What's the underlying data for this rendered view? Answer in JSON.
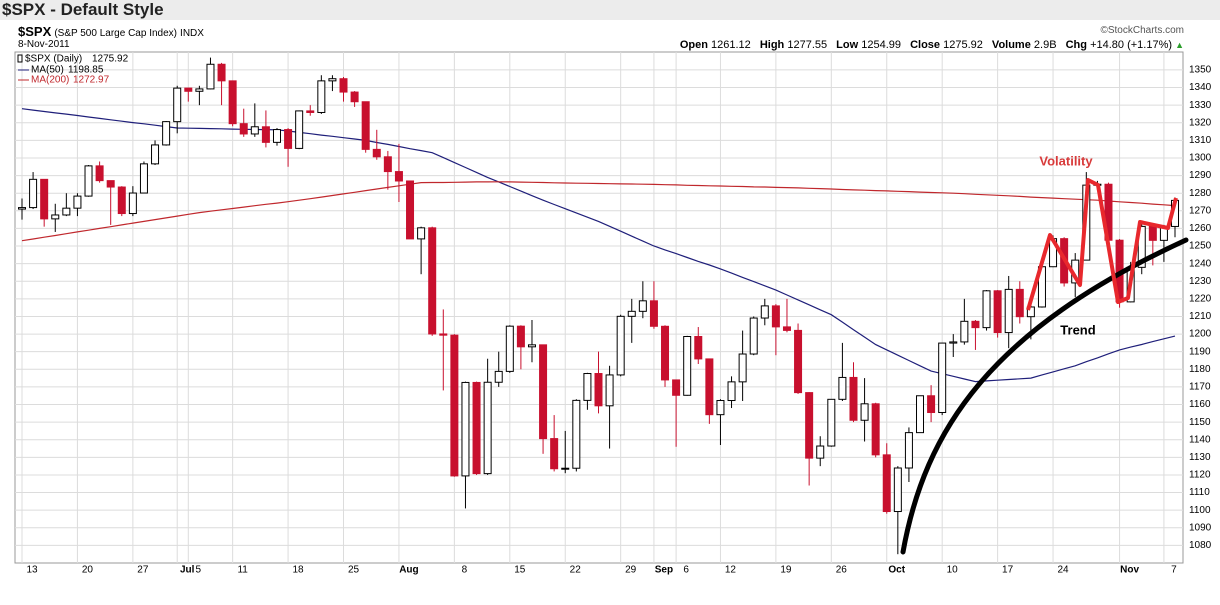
{
  "header": {
    "title": "$SPX - Default Style",
    "symbol": "$SPX",
    "name": "(S&P 500 Large Cap Index)",
    "exchange": "INDX",
    "date": "8-Nov-2011",
    "credit": "©StockCharts.com",
    "quote": {
      "labels": [
        "Open",
        "High",
        "Low",
        "Close",
        "Volume",
        "Chg"
      ],
      "volume": "2.9B",
      "change": "+14.80 (+1.17%)"
    }
  },
  "chart_data": {
    "type": "candlestick",
    "series_name": "$SPX (Daily)",
    "up_color": "#000000",
    "down_color": "#c8102e",
    "grid": true,
    "categories": [
      "13",
      null,
      null,
      null,
      null,
      "20",
      null,
      null,
      null,
      null,
      "27",
      null,
      null,
      null,
      "Jul",
      "5",
      null,
      null,
      null,
      "11",
      null,
      null,
      null,
      null,
      "18",
      null,
      null,
      null,
      null,
      "25",
      null,
      null,
      null,
      null,
      "Aug",
      null,
      null,
      null,
      null,
      "8",
      null,
      null,
      null,
      null,
      "15",
      null,
      null,
      null,
      null,
      "22",
      null,
      null,
      null,
      null,
      "29",
      null,
      null,
      "Sep",
      null,
      "6",
      null,
      null,
      null,
      "12",
      null,
      null,
      null,
      null,
      "19",
      null,
      null,
      null,
      null,
      "26",
      null,
      null,
      null,
      null,
      "Oct",
      null,
      null,
      null,
      null,
      "10",
      null,
      null,
      null,
      null,
      "17",
      null,
      null,
      null,
      null,
      "24",
      null,
      null,
      null,
      null,
      null,
      "Nov",
      null,
      null,
      null,
      "7",
      null
    ],
    "open": [
      1270.98,
      1271.83,
      1287.87,
      1265.42,
      1267.64,
      1271.5,
      1278.36,
      1295.52,
      1287.14,
      1283.5,
      1268.45,
      1280.1,
      1296.67,
      1307.41,
      1320.64,
      1339.67,
      1337.88,
      1339.22,
      1353.22,
      1343.8,
      1319.49,
      1313.64,
      1317.72,
      1308.87,
      1316.14,
      1305.44,
      1326.73,
      1325.84,
      1343.8,
      1345.02,
      1337.43,
      1331.94,
      1304.89,
      1300.67,
      1292.28,
      1286.94,
      1254.05,
      1260.34,
      1200.07,
      1199.38,
      1119.46,
      1172.53,
      1120.76,
      1172.64,
      1178.81,
      1204.49,
      1192.76,
      1193.89,
      1140.65,
      1123.53,
      1123.82,
      1162.35,
      1177.6,
      1159.27,
      1176.8,
      1210.08,
      1212.92,
      1218.89,
      1204.42,
      1173.97,
      1165.24,
      1198.62,
      1185.9,
      1154.23,
      1162.27,
      1172.87,
      1188.68,
      1209.11,
      1216.01,
      1204.09,
      1202.09,
      1166.76,
      1129.56,
      1136.43,
      1162.95,
      1175.38,
      1151.06,
      1160.4,
      1131.42,
      1099.23,
      1123.95,
      1144.03,
      1164.97,
      1155.46,
      1194.89,
      1195.54,
      1207.25,
      1203.66,
      1224.58,
      1200.86,
      1225.38,
      1209.88,
      1215.39,
      1238.25,
      1254.19,
      1229.05,
      1242.0,
      1284.59,
      1285.09,
      1253.3,
      1218.28,
      1237.9,
      1261.15,
      1253.23,
      1261.12
    ],
    "high": [
      1277,
      1292,
      1288,
      1274,
      1280,
      1280,
      1296,
      1298,
      1287,
      1284,
      1284,
      1298,
      1310,
      1321,
      1341,
      1340,
      1341,
      1357,
      1354,
      1344,
      1328,
      1331,
      1327,
      1317,
      1317,
      1327,
      1330,
      1347,
      1347,
      1346,
      1338,
      1332,
      1316,
      1304,
      1308,
      1287,
      1261,
      1261,
      1214,
      1200,
      1173,
      1173,
      1186,
      1190,
      1205,
      1205,
      1208,
      1194,
      1154,
      1145,
      1163,
      1178,
      1190,
      1182,
      1211,
      1220,
      1230,
      1230,
      1205,
      1174,
      1199,
      1204,
      1186,
      1163,
      1176,
      1202,
      1210,
      1220,
      1217,
      1220,
      1206,
      1167,
      1142,
      1163,
      1195,
      1184,
      1175,
      1161,
      1138,
      1125,
      1147,
      1165,
      1171,
      1195,
      1200,
      1220,
      1208,
      1225,
      1225,
      1233,
      1230,
      1218,
      1240,
      1256,
      1255,
      1246,
      1292,
      1287,
      1286,
      1254,
      1241,
      1264,
      1262,
      1262,
      1277.55
    ],
    "low": [
      1265,
      1271,
      1261,
      1258,
      1267,
      1267,
      1278,
      1286,
      1262,
      1267,
      1267,
      1280,
      1296,
      1307,
      1314,
      1332,
      1330,
      1339,
      1330,
      1318,
      1312,
      1312,
      1306,
      1307,
      1295,
      1305,
      1324,
      1325,
      1338,
      1332,
      1329,
      1303,
      1299,
      1282,
      1275,
      1254,
      1234,
      1199,
      1168,
      1119,
      1101,
      1120,
      1120,
      1170,
      1178,
      1180,
      1184,
      1132,
      1122,
      1121,
      1122,
      1157,
      1155,
      1135,
      1176,
      1195,
      1209,
      1203,
      1170,
      1136,
      1165,
      1183,
      1149,
      1137,
      1158,
      1162,
      1188,
      1205,
      1188,
      1201,
      1166,
      1114,
      1125,
      1136,
      1162,
      1150,
      1139,
      1130,
      1098,
      1075,
      1116,
      1144,
      1150,
      1154,
      1187,
      1194,
      1191,
      1202,
      1198,
      1192,
      1206,
      1197,
      1215,
      1238,
      1227,
      1221,
      1242,
      1282,
      1253,
      1215,
      1218,
      1234,
      1239,
      1241,
      1254.99
    ],
    "close": [
      1271.83,
      1287.87,
      1265.42,
      1267.64,
      1271.5,
      1278.36,
      1295.52,
      1287.14,
      1283.5,
      1268.45,
      1280.1,
      1296.67,
      1307.41,
      1320.64,
      1339.67,
      1337.88,
      1339.22,
      1353.22,
      1343.8,
      1319.49,
      1313.64,
      1317.72,
      1308.87,
      1316.14,
      1305.44,
      1326.73,
      1325.84,
      1343.8,
      1345.02,
      1337.43,
      1331.94,
      1304.89,
      1300.67,
      1292.28,
      1286.94,
      1254.05,
      1260.34,
      1200.07,
      1199.38,
      1119.46,
      1172.53,
      1120.76,
      1172.64,
      1178.81,
      1204.49,
      1192.76,
      1193.89,
      1140.65,
      1123.53,
      1123.82,
      1162.35,
      1177.6,
      1159.27,
      1176.8,
      1210.08,
      1212.92,
      1218.89,
      1204.42,
      1173.97,
      1165.24,
      1198.62,
      1185.9,
      1154.23,
      1162.27,
      1172.87,
      1188.68,
      1209.11,
      1216.01,
      1204.09,
      1202.09,
      1166.76,
      1129.56,
      1136.43,
      1162.95,
      1175.38,
      1151.06,
      1160.4,
      1131.42,
      1099.23,
      1123.95,
      1144.03,
      1164.97,
      1155.46,
      1194.89,
      1195.54,
      1207.25,
      1203.66,
      1224.58,
      1200.86,
      1225.38,
      1209.88,
      1215.39,
      1238.25,
      1254.19,
      1229.05,
      1242.0,
      1284.59,
      1285.09,
      1253.3,
      1218.28,
      1237.9,
      1261.15,
      1253.23,
      1261.12,
      1275.92
    ],
    "lines": [
      {
        "name": "MA(50)",
        "color": "#1f1f7a",
        "values": [
          1328,
          1327.2,
          1326.4,
          1325.6,
          1324.9,
          1324.1,
          1323.3,
          1322.5,
          1321.7,
          1320.9,
          1320.1,
          1319.4,
          1318.6,
          1317.8,
          1317,
          1316.9,
          1316.8,
          1316.7,
          1316.6,
          1316.4,
          1316.3,
          1316.2,
          1316.1,
          1316,
          1315.3,
          1314.5,
          1313.8,
          1313,
          1312.3,
          1311.5,
          1310.8,
          1310,
          1308.8,
          1307.7,
          1306.5,
          1305.3,
          1304.2,
          1303,
          1300.2,
          1297.4,
          1294.6,
          1291.8,
          1289,
          1286.4,
          1283.8,
          1281.2,
          1278.6,
          1276,
          1273.6,
          1271.2,
          1268.8,
          1266.4,
          1264,
          1261.2,
          1258.4,
          1255.6,
          1252.8,
          1250,
          1247.8,
          1245.7,
          1243.5,
          1241.3,
          1239.2,
          1237,
          1234.6,
          1232.2,
          1229.8,
          1227.4,
          1225,
          1222.2,
          1219.4,
          1216.6,
          1213.8,
          1211,
          1206.8,
          1202.5,
          1198.3,
          1194,
          1191,
          1188,
          1185,
          1182,
          1179,
          1177.5,
          1176,
          1174.5,
          1173,
          1173.4,
          1173.8,
          1174.2,
          1174.6,
          1175,
          1176.8,
          1178.5,
          1180.3,
          1182,
          1184.3,
          1186.5,
          1188.8,
          1191,
          1192.6,
          1194.1,
          1195.7,
          1197.3,
          1198.85
        ]
      },
      {
        "name": "MA(200)",
        "color": "#c0282d",
        "values": [
          1253,
          1254,
          1255,
          1256,
          1257,
          1258,
          1259,
          1260,
          1261,
          1262,
          1263,
          1264,
          1265,
          1266,
          1267,
          1268,
          1269,
          1269.8,
          1270.6,
          1271.3,
          1272.1,
          1272.9,
          1273.7,
          1274.4,
          1275.2,
          1276,
          1276.9,
          1277.8,
          1278.7,
          1279.6,
          1280.5,
          1281.5,
          1282.4,
          1283.3,
          1284.2,
          1285.1,
          1286,
          1286.1,
          1286.1,
          1286.2,
          1286.3,
          1286.4,
          1286.4,
          1286.5,
          1286.4,
          1286.3,
          1286.2,
          1286.1,
          1285.9,
          1285.8,
          1285.7,
          1285.6,
          1285.5,
          1285.4,
          1285.3,
          1285.2,
          1285.1,
          1285,
          1284.8,
          1284.7,
          1284.5,
          1284.4,
          1284.2,
          1284.1,
          1283.9,
          1283.8,
          1283.6,
          1283.5,
          1283.3,
          1283.2,
          1283,
          1282.8,
          1282.6,
          1282.4,
          1282.1,
          1281.9,
          1281.7,
          1281.5,
          1281.3,
          1281.1,
          1280.9,
          1280.6,
          1280.4,
          1280.2,
          1280,
          1279.7,
          1279.4,
          1279.1,
          1278.8,
          1278.5,
          1278.2,
          1277.8,
          1277.5,
          1277.2,
          1276.9,
          1276.6,
          1276.3,
          1276,
          1275.6,
          1275.1,
          1274.7,
          1274.3,
          1273.8,
          1273.4,
          1272.97
        ]
      }
    ],
    "ylim": [
      1070,
      1367
    ],
    "yticks": [
      1080,
      1090,
      1100,
      1110,
      1120,
      1130,
      1140,
      1150,
      1160,
      1170,
      1180,
      1190,
      1200,
      1210,
      1220,
      1230,
      1240,
      1250,
      1260,
      1270,
      1280,
      1290,
      1300,
      1310,
      1320,
      1330,
      1340,
      1350
    ],
    "annotations": {
      "volatility": "Volatility",
      "trend": "Trend"
    }
  }
}
